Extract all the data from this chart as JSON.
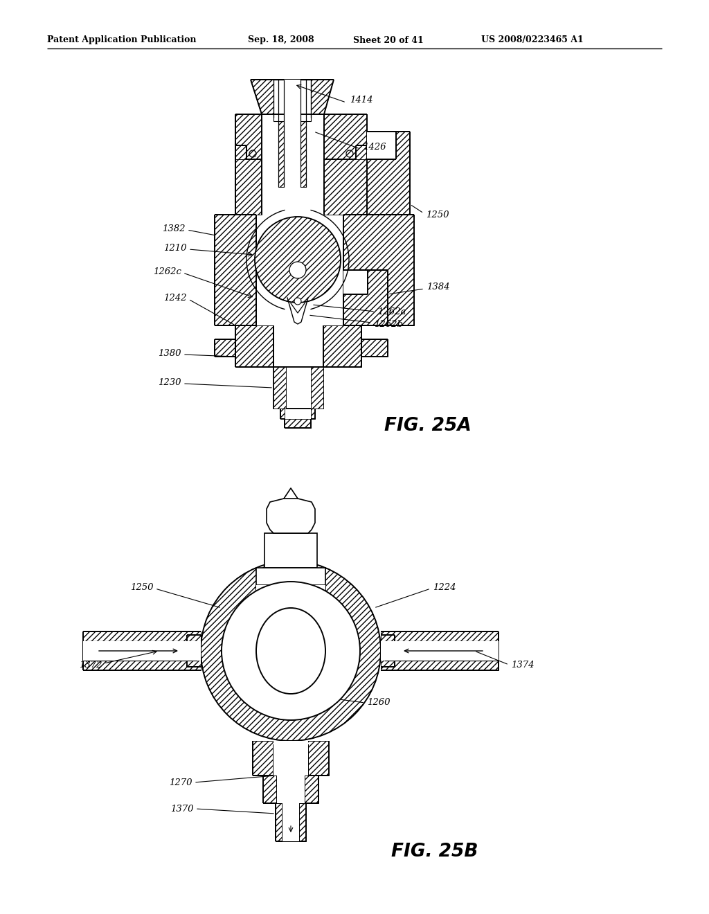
{
  "bg_color": "#ffffff",
  "line_color": "#000000",
  "header_text": "Patent Application Publication",
  "header_date": "Sep. 18, 2008",
  "header_sheet": "Sheet 20 of 41",
  "header_patent": "US 2008/0223465 A1",
  "fig_a_label": "FIG. 25A",
  "fig_b_label": "FIG. 25B"
}
